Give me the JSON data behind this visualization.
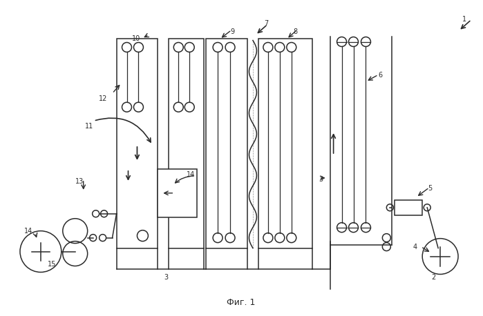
{
  "title": "Фиг. 1",
  "bg_color": "#ffffff",
  "lc": "#2a2a2a",
  "fig_width": 6.99,
  "fig_height": 4.58,
  "dpi": 100
}
